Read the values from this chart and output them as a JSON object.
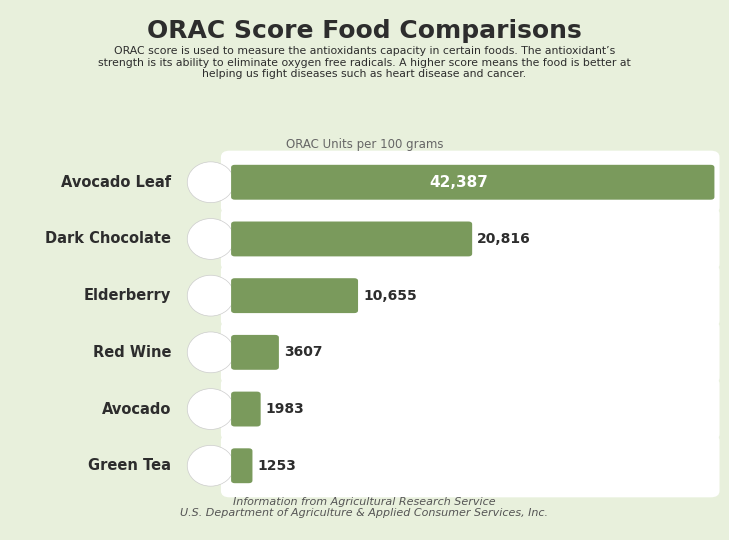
{
  "title": "ORAC Score Food Comparisons",
  "subtitle": "ORAC score is used to measure the antioxidants capacity in certain foods. The antioxidant’s\nstrength is its ability to eliminate oxygen free radicals. A higher score means the food is better at\nhelping us fight diseases such as heart disease and cancer.",
  "axis_label": "ORAC Units per 100 grams",
  "categories": [
    "Avocado Leaf",
    "Dark Chocolate",
    "Elderberry",
    "Red Wine",
    "Avocado",
    "Green Tea"
  ],
  "values": [
    42387,
    20816,
    10655,
    3607,
    1983,
    1253
  ],
  "value_labels": [
    "42,387",
    "20,816",
    "10,655",
    "3607",
    "1983",
    "1253"
  ],
  "bar_color": "#7a9a5c",
  "background_color": "#e8f0dc",
  "row_bg_color": "#ffffff",
  "text_color": "#2d2d2d",
  "footer": "Information from Agricultural Research Service\nU.S. Department of Agriculture & Applied Consumer Services, Inc.",
  "max_display": 42387,
  "title_fontsize": 18,
  "subtitle_fontsize": 7.8,
  "axis_label_fontsize": 8.5,
  "cat_fontsize": 10.5,
  "val_fontsize": 10,
  "footer_fontsize": 8
}
